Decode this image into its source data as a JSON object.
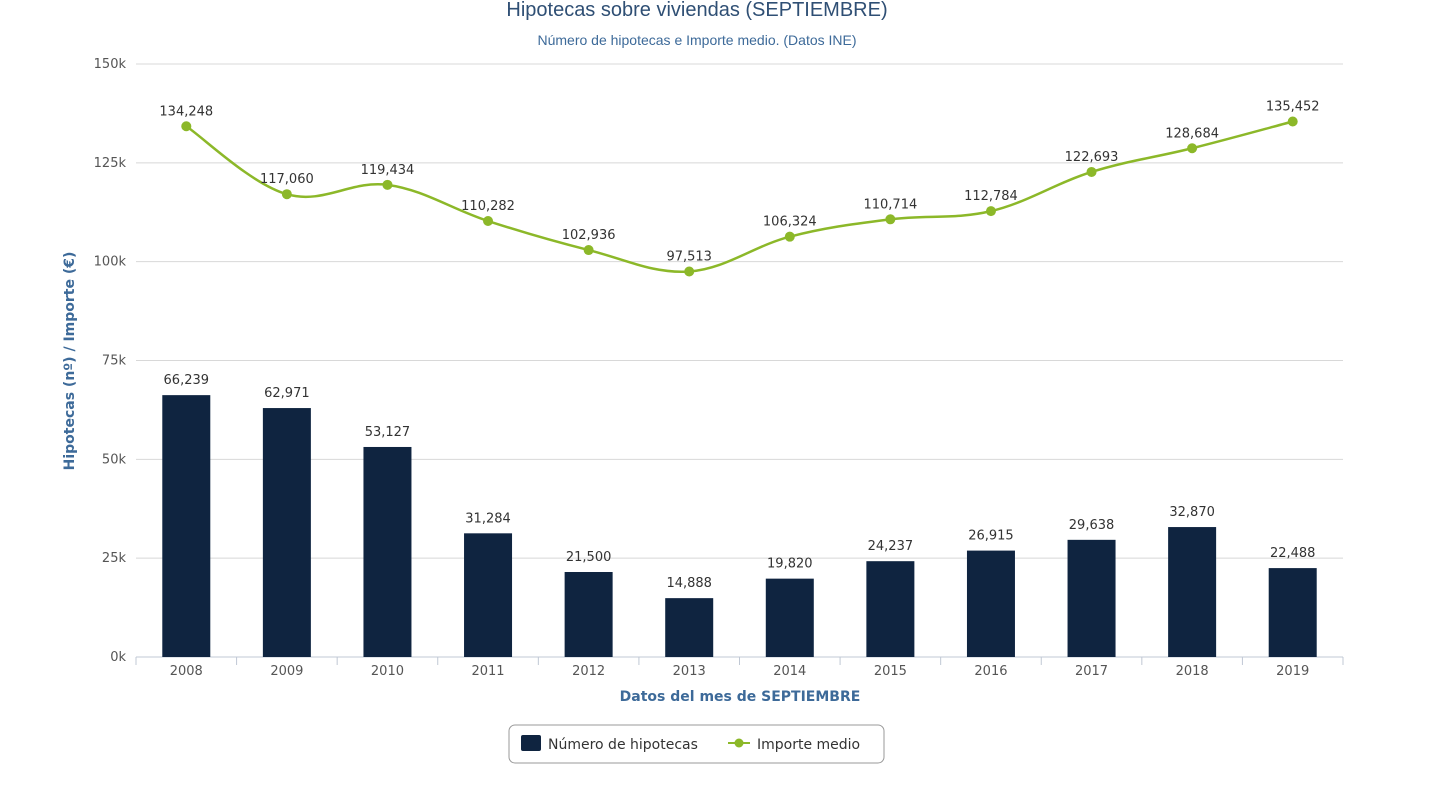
{
  "chart_data": {
    "type": "bar+line",
    "title": "Hipotecas sobre viviendas (SEPTIEMBRE)",
    "subtitle": "Número de hipotecas e Importe medio. (Datos INE)",
    "xlabel": "Datos del mes de SEPTIEMBRE",
    "ylabel": "Hipotecas (nº) / Importe (€)",
    "categories": [
      "2008",
      "2009",
      "2010",
      "2011",
      "2012",
      "2013",
      "2014",
      "2015",
      "2016",
      "2017",
      "2018",
      "2019"
    ],
    "ylim": [
      0,
      150000
    ],
    "yticks": [
      0,
      25000,
      50000,
      75000,
      100000,
      125000,
      150000
    ],
    "ytick_labels": [
      "0k",
      "25k",
      "50k",
      "75k",
      "100k",
      "125k",
      "150k"
    ],
    "grid": true,
    "legend_position": "bottom-center",
    "series": [
      {
        "name": "Número de hipotecas",
        "type": "bar",
        "color": "#0f2440",
        "values": [
          66239,
          62971,
          53127,
          31284,
          21500,
          14888,
          19820,
          24237,
          26915,
          29638,
          32870,
          22488
        ],
        "labels": [
          "66,239",
          "62,971",
          "53,127",
          "31,284",
          "21,500",
          "14,888",
          "19,820",
          "24,237",
          "26,915",
          "29,638",
          "32,870",
          "22,488"
        ]
      },
      {
        "name": "Importe medio",
        "type": "line",
        "color": "#8cb829",
        "values": [
          134248,
          117060,
          119434,
          110282,
          102936,
          97513,
          106324,
          110714,
          112784,
          122693,
          128684,
          135452
        ],
        "labels": [
          "134,248",
          "117,060",
          "119,434",
          "110,282",
          "102,936",
          "97,513",
          "106,324",
          "110,714",
          "112,784",
          "122,693",
          "128,684",
          "135,452"
        ]
      }
    ]
  }
}
